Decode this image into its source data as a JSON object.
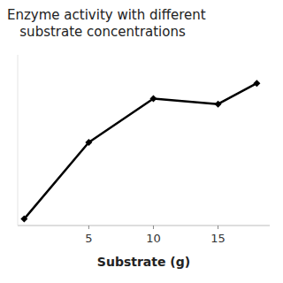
{
  "chart_data": {
    "type": "line",
    "title": "Enzyme activity with different\n   substrate concentrations",
    "x_label": "Substrate (g)",
    "x": [
      0,
      5,
      10,
      15,
      18
    ],
    "values": [
      0.03,
      0.38,
      0.58,
      0.555,
      0.65
    ],
    "xlim": [
      -0.5,
      19
    ],
    "xticks": [
      5,
      10,
      15
    ],
    "ylim": [
      0,
      0.78
    ],
    "color": "#000000",
    "marker": "diamond",
    "line_style": "solid",
    "grid": false,
    "tick_labels": "x"
  }
}
